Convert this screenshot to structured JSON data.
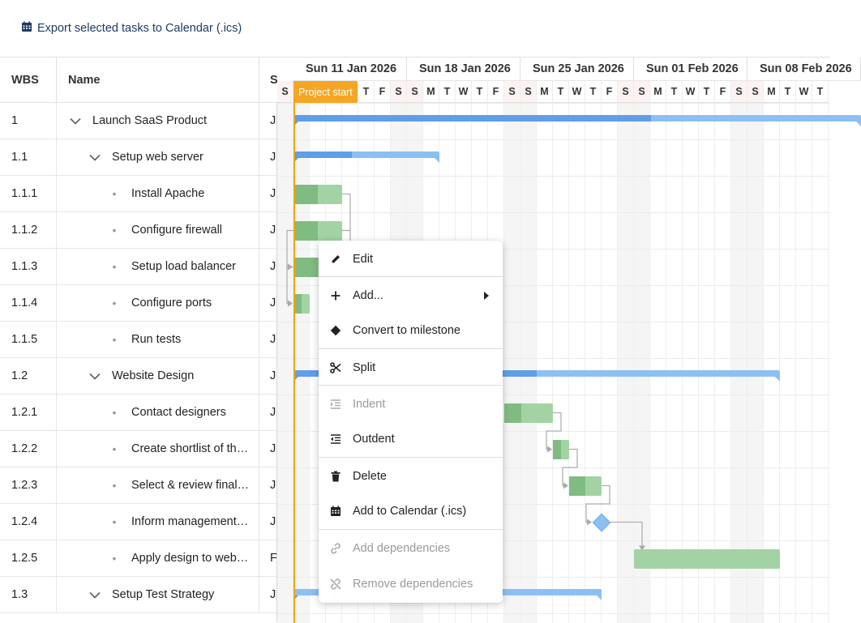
{
  "toolbar": {
    "export_label": "Export selected tasks to Calendar (.ics)",
    "export_icon": "calendar-icon"
  },
  "grid": {
    "columns": {
      "wbs": "WBS",
      "name": "Name",
      "start": "S"
    },
    "rows": [
      {
        "wbs": "1",
        "name": "Launch SaaS Product",
        "level": 0,
        "parent": true,
        "start": "J"
      },
      {
        "wbs": "1.1",
        "name": "Setup web server",
        "level": 1,
        "parent": true,
        "start": "J"
      },
      {
        "wbs": "1.1.1",
        "name": "Install Apache",
        "level": 2,
        "parent": false,
        "start": "J"
      },
      {
        "wbs": "1.1.2",
        "name": "Configure firewall",
        "level": 2,
        "parent": false,
        "start": "J"
      },
      {
        "wbs": "1.1.3",
        "name": "Setup load balancer",
        "level": 2,
        "parent": false,
        "start": "J"
      },
      {
        "wbs": "1.1.4",
        "name": "Configure ports",
        "level": 2,
        "parent": false,
        "start": "J"
      },
      {
        "wbs": "1.1.5",
        "name": "Run tests",
        "level": 2,
        "parent": false,
        "start": "J"
      },
      {
        "wbs": "1.2",
        "name": "Website Design",
        "level": 1,
        "parent": true,
        "start": "J"
      },
      {
        "wbs": "1.2.1",
        "name": "Contact designers",
        "level": 2,
        "parent": false,
        "start": "J"
      },
      {
        "wbs": "1.2.2",
        "name": "Create shortlist of th…",
        "level": 2,
        "parent": false,
        "start": "J"
      },
      {
        "wbs": "1.2.3",
        "name": "Select & review final…",
        "level": 2,
        "parent": false,
        "start": "J"
      },
      {
        "wbs": "1.2.4",
        "name": "Inform management…",
        "level": 2,
        "parent": false,
        "start": "J"
      },
      {
        "wbs": "1.2.5",
        "name": "Apply design to web…",
        "level": 2,
        "parent": false,
        "start": "F"
      },
      {
        "wbs": "1.3",
        "name": "Setup Test Strategy",
        "level": 1,
        "parent": true,
        "start": "J"
      }
    ]
  },
  "timeline": {
    "weeks": [
      "Sun 11 Jan 2026",
      "Sun 18 Jan 2026",
      "Sun 25 Jan 2026",
      "Sun 01 Feb 2026",
      "Sun 08 Feb 2026"
    ],
    "first_week_start_day": 0,
    "day_letters": [
      "S",
      "M",
      "T",
      "W",
      "T",
      "F",
      "S"
    ],
    "visible_days": 34,
    "project_start_label": "Project start",
    "project_start_day": 1
  },
  "bars": [
    {
      "row": 0,
      "kind": "parent",
      "start": 1,
      "days": 35,
      "percent": 0.63
    },
    {
      "row": 1,
      "kind": "parent",
      "start": 1,
      "days": 9,
      "percent": 0.4
    },
    {
      "row": 2,
      "kind": "task",
      "start": 1,
      "days": 3,
      "percent": 0.5
    },
    {
      "row": 3,
      "kind": "task",
      "start": 1,
      "days": 3,
      "percent": 0.5
    },
    {
      "row": 4,
      "kind": "task",
      "start": 1,
      "days": 3,
      "percent": 0.5
    },
    {
      "row": 5,
      "kind": "task",
      "start": 1,
      "days": 1,
      "percent": 0.5
    },
    {
      "row": 7,
      "kind": "parent",
      "start": 1,
      "days": 30,
      "percent": 0.5
    },
    {
      "row": 8,
      "kind": "task",
      "start": 14,
      "days": 3,
      "percent": 0.35
    },
    {
      "row": 9,
      "kind": "task",
      "start": 17,
      "days": 1,
      "percent": 0.5
    },
    {
      "row": 10,
      "kind": "task",
      "start": 18,
      "days": 2,
      "percent": 0.5
    },
    {
      "row": 11,
      "kind": "milestone",
      "start": 20,
      "days": 0,
      "percent": 0
    },
    {
      "row": 12,
      "kind": "task",
      "start": 22,
      "days": 9,
      "percent": 0
    },
    {
      "row": 13,
      "kind": "parent",
      "start": 1,
      "days": 19,
      "percent": 0.0
    }
  ],
  "context_menu": {
    "items": [
      {
        "label": "Edit",
        "icon": "pencil-icon",
        "disabled": false,
        "submenu": false,
        "sep_after": true
      },
      {
        "label": "Add...",
        "icon": "plus-icon",
        "disabled": false,
        "submenu": true,
        "sep_after": false
      },
      {
        "label": "Convert to milestone",
        "icon": "diamond-icon",
        "disabled": false,
        "submenu": false,
        "sep_after": true
      },
      {
        "label": "Split",
        "icon": "scissors-icon",
        "disabled": false,
        "submenu": false,
        "sep_after": true
      },
      {
        "label": "Indent",
        "icon": "indent-icon",
        "disabled": true,
        "submenu": false,
        "sep_after": false
      },
      {
        "label": "Outdent",
        "icon": "outdent-icon",
        "disabled": false,
        "submenu": false,
        "sep_after": true
      },
      {
        "label": "Delete",
        "icon": "trash-icon",
        "disabled": false,
        "submenu": false,
        "sep_after": false
      },
      {
        "label": "Add to Calendar (.ics)",
        "icon": "calendar-icon",
        "disabled": false,
        "submenu": false,
        "sep_after": true
      },
      {
        "label": "Add dependencies",
        "icon": "link-icon",
        "disabled": true,
        "submenu": false,
        "sep_after": false
      },
      {
        "label": "Remove dependencies",
        "icon": "unlink-icon",
        "disabled": true,
        "submenu": false,
        "sep_after": false
      }
    ]
  },
  "colors": {
    "parent_done": "#5f9ee8",
    "parent_todo": "#8cc0f4",
    "task_done": "#80bc81",
    "task_todo": "#a3d3a4",
    "project_start": "#f5a623"
  }
}
